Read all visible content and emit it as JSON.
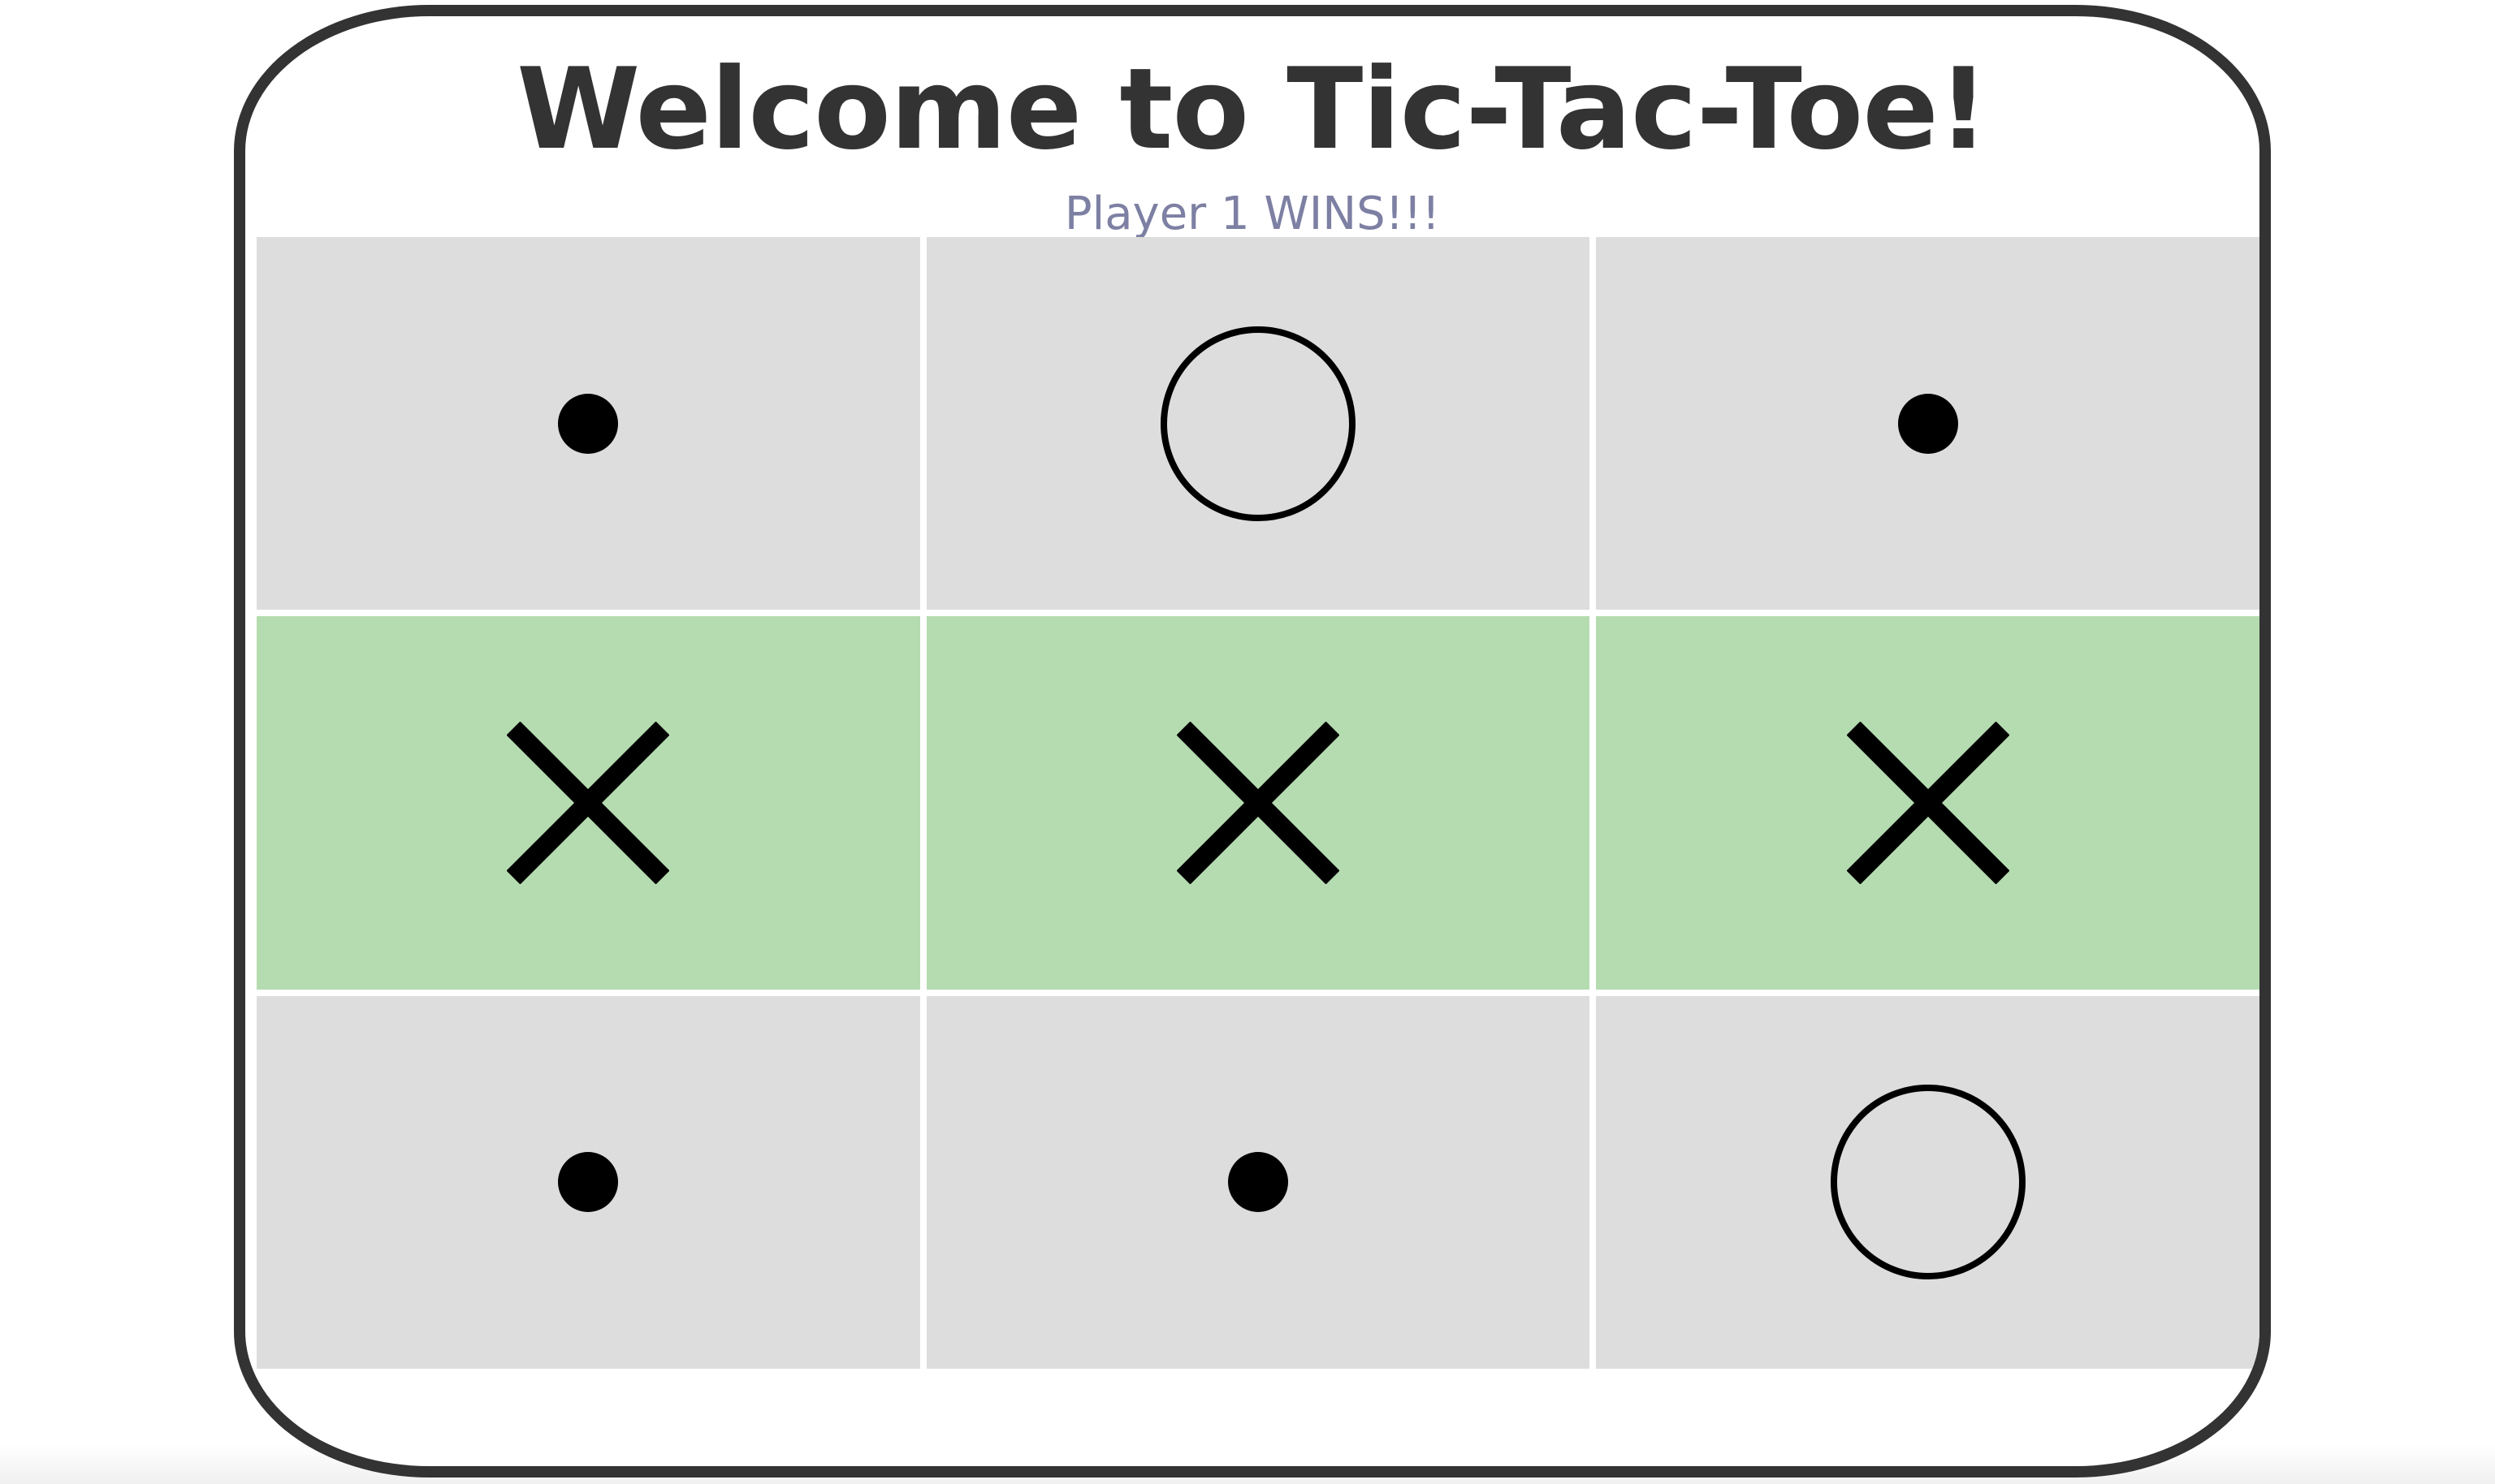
{
  "game": {
    "title": "Welcome to Tic-Tac-Toe!",
    "status": "Player 1 WINS!!!",
    "win_color": "#b5dcb0",
    "empty_color": "#dddddd",
    "board": [
      {
        "mark": "empty",
        "icon": "dot-icon",
        "win": false
      },
      {
        "mark": "O",
        "icon": "o-icon",
        "win": false
      },
      {
        "mark": "empty",
        "icon": "dot-icon",
        "win": false
      },
      {
        "mark": "X",
        "icon": "x-icon",
        "win": true
      },
      {
        "mark": "X",
        "icon": "x-icon",
        "win": true
      },
      {
        "mark": "X",
        "icon": "x-icon",
        "win": true
      },
      {
        "mark": "empty",
        "icon": "dot-icon",
        "win": false
      },
      {
        "mark": "empty",
        "icon": "dot-icon",
        "win": false
      },
      {
        "mark": "O",
        "icon": "o-icon",
        "win": false
      }
    ]
  }
}
